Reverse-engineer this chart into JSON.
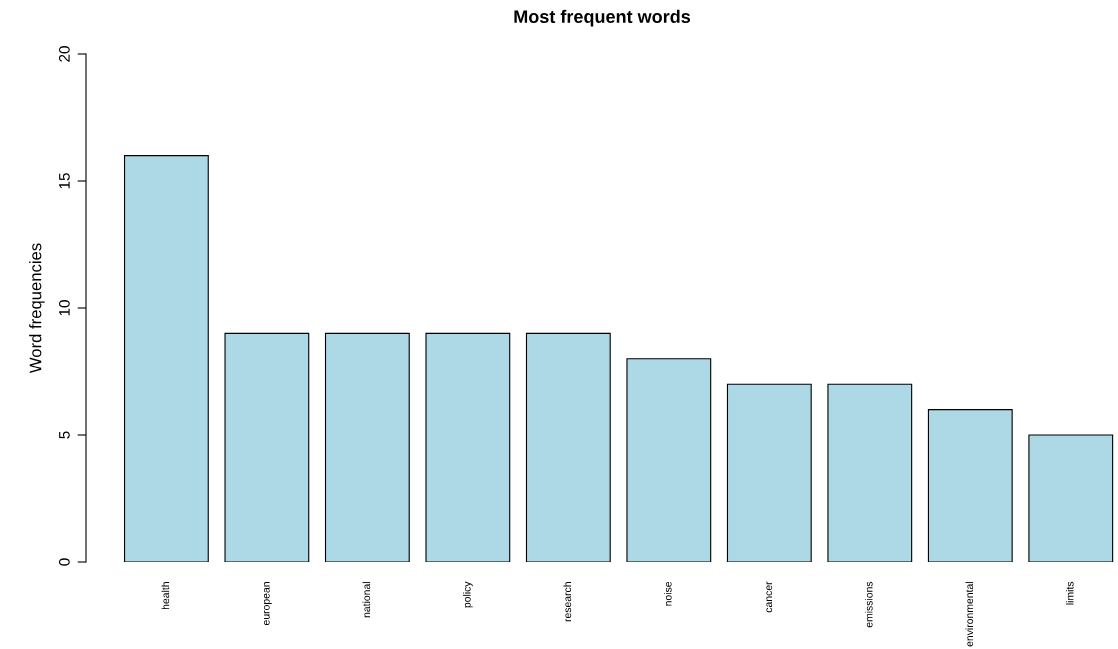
{
  "chart_data": {
    "type": "bar",
    "title": "Most frequent words",
    "ylabel": "Word frequencies",
    "categories": [
      "health",
      "european",
      "national",
      "policy",
      "research",
      "noise",
      "cancer",
      "emissions",
      "environmental",
      "limits"
    ],
    "values": [
      16,
      9,
      9,
      9,
      9,
      8,
      7,
      7,
      6,
      5
    ],
    "color": "#add8e6",
    "ylim": [
      0,
      20
    ],
    "yticks": [
      0,
      5,
      10,
      15,
      20
    ],
    "grid": false,
    "legend": false
  }
}
